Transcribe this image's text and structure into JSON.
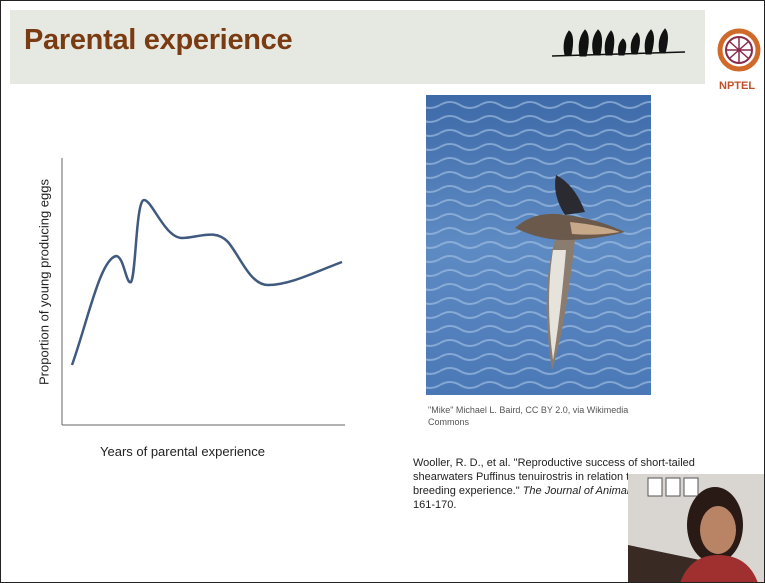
{
  "header": {
    "title": "Parental experience",
    "logo": "NPTEL"
  },
  "figure": {
    "y_axis_label": "Proportion of young producing eggs",
    "x_axis_label": "Years of parental experience"
  },
  "photo": {
    "caption": "\"Mike\" Michael L. Baird, CC BY 2.0, via Wikimedia Commons"
  },
  "reference": {
    "line1": "Wooller, R. D., et al. \"Reproductive success of short-tailed",
    "line2": "shearwaters Puffinus tenuirostris in relation to",
    "line3_plain": "breeding experience.\" ",
    "line3_italic": "The Journal of Animal E",
    "line4": "161-170."
  }
}
